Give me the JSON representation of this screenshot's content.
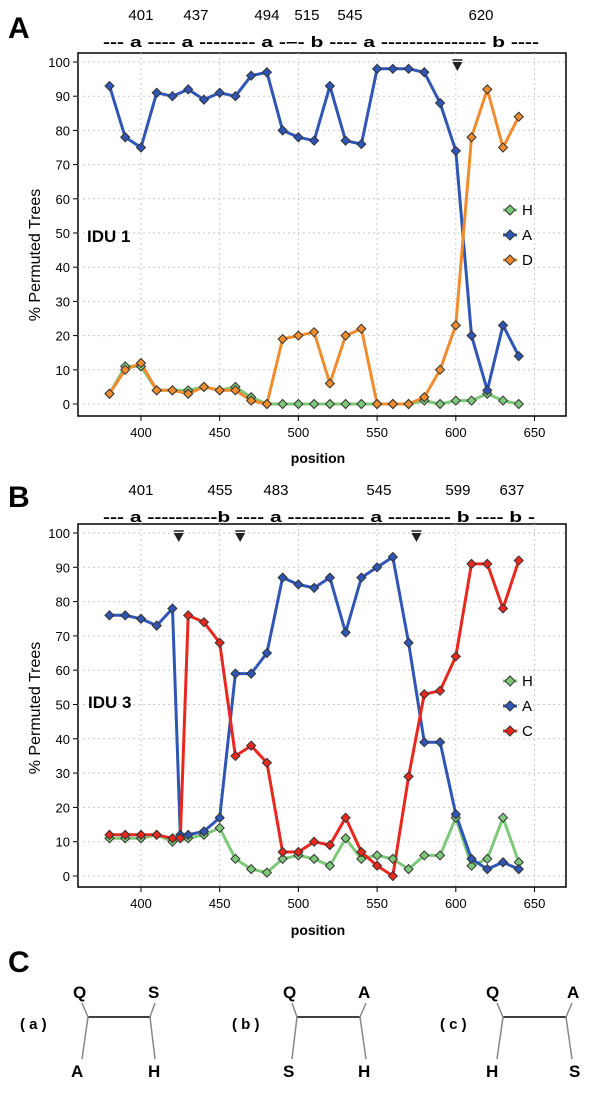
{
  "colors": {
    "H": "#7ec87a",
    "A": "#2f55b5",
    "D": "#f08c2e",
    "C": "#e8281e",
    "marker": "#333333"
  },
  "chart_data": [
    {
      "type": "line",
      "panel": "A",
      "label": "IDU 1",
      "positions": [
        "401",
        "437",
        "494",
        "515",
        "545",
        "620"
      ],
      "sequence": "--- a ---- a -------- a -–- b ---- a --------------- b ----",
      "xlabel": "position",
      "ylabel": "% Permuted Trees",
      "xlim": [
        360,
        670
      ],
      "ylim": [
        0,
        100
      ],
      "xticks": [
        400,
        450,
        500,
        550,
        600,
        650
      ],
      "yticks": [
        0,
        10,
        20,
        30,
        40,
        50,
        60,
        70,
        80,
        90,
        100
      ],
      "arrows": [
        601
      ],
      "legend": [
        "H",
        "A",
        "D"
      ],
      "series": [
        {
          "name": "H",
          "x": [
            380,
            390,
            400,
            410,
            420,
            430,
            440,
            450,
            460,
            470,
            480,
            490,
            500,
            510,
            520,
            530,
            540,
            550,
            560,
            570,
            580,
            590,
            600,
            610,
            620,
            630,
            640
          ],
          "y": [
            3,
            11,
            11,
            4,
            4,
            4,
            5,
            4,
            5,
            2,
            0,
            0,
            0,
            0,
            0,
            0,
            0,
            0,
            0,
            0,
            1,
            0,
            1,
            1,
            3,
            1,
            0
          ]
        },
        {
          "name": "A",
          "x": [
            380,
            390,
            400,
            410,
            420,
            430,
            440,
            450,
            460,
            470,
            480,
            490,
            500,
            510,
            520,
            530,
            540,
            550,
            560,
            570,
            580,
            590,
            600,
            610,
            620,
            630,
            640
          ],
          "y": [
            93,
            78,
            75,
            91,
            90,
            92,
            89,
            91,
            90,
            96,
            97,
            80,
            78,
            77,
            93,
            77,
            76,
            98,
            98,
            98,
            97,
            88,
            74,
            20,
            4,
            23,
            14
          ]
        },
        {
          "name": "D",
          "x": [
            380,
            390,
            400,
            410,
            420,
            430,
            440,
            450,
            460,
            470,
            480,
            490,
            500,
            510,
            520,
            530,
            540,
            550,
            560,
            570,
            580,
            590,
            600,
            610,
            620,
            630,
            640
          ],
          "y": [
            3,
            10,
            12,
            4,
            4,
            3,
            5,
            4,
            4,
            1,
            0,
            19,
            20,
            21,
            6,
            20,
            22,
            0,
            0,
            0,
            2,
            10,
            23,
            78,
            92,
            75,
            84
          ]
        }
      ]
    },
    {
      "type": "line",
      "panel": "B",
      "label": "IDU 3",
      "positions": [
        "401",
        "455",
        "483",
        "545",
        "599",
        "637"
      ],
      "sequence": "--- a ----------b ---- a ----------- a --------- b ---- b -",
      "xlabel": "position",
      "ylabel": "% Permuted Trees",
      "xlim": [
        360,
        670
      ],
      "ylim": [
        0,
        100
      ],
      "xticks": [
        400,
        450,
        500,
        550,
        600,
        650
      ],
      "yticks": [
        0,
        10,
        20,
        30,
        40,
        50,
        60,
        70,
        80,
        90,
        100
      ],
      "arrows": [
        424,
        463,
        575
      ],
      "legend": [
        "H",
        "A",
        "C"
      ],
      "series": [
        {
          "name": "H",
          "x": [
            380,
            390,
            400,
            410,
            420,
            430,
            440,
            450,
            460,
            470,
            480,
            490,
            500,
            510,
            520,
            530,
            540,
            550,
            560,
            570,
            580,
            590,
            600,
            610,
            620,
            630,
            640
          ],
          "y": [
            11,
            11,
            11,
            12,
            10,
            11,
            12,
            14,
            5,
            2,
            1,
            5,
            6,
            5,
            3,
            11,
            5,
            6,
            5,
            2,
            6,
            6,
            17,
            3,
            5,
            17,
            4
          ]
        },
        {
          "name": "A",
          "x": [
            380,
            390,
            400,
            410,
            420,
            425,
            430,
            440,
            450,
            460,
            470,
            480,
            490,
            500,
            510,
            520,
            530,
            540,
            550,
            560,
            570,
            580,
            590,
            600,
            610,
            620,
            630,
            640
          ],
          "y": [
            76,
            76,
            75,
            73,
            78,
            12,
            12,
            13,
            17,
            59,
            59,
            65,
            87,
            85,
            84,
            87,
            71,
            87,
            90,
            93,
            68,
            39,
            39,
            18,
            5,
            2,
            4,
            2
          ]
        },
        {
          "name": "C",
          "x": [
            380,
            390,
            400,
            410,
            420,
            425,
            430,
            440,
            450,
            460,
            470,
            480,
            490,
            500,
            510,
            520,
            530,
            540,
            550,
            560,
            570,
            580,
            590,
            600,
            610,
            620,
            630,
            640
          ],
          "y": [
            12,
            12,
            12,
            12,
            11,
            11,
            76,
            74,
            68,
            35,
            38,
            33,
            7,
            7,
            10,
            9,
            17,
            7,
            3,
            0,
            29,
            53,
            54,
            64,
            91,
            91,
            78,
            92
          ]
        }
      ]
    }
  ],
  "panel_c": {
    "letter": "C",
    "trees": [
      {
        "tag": "( a )",
        "tl": "Q",
        "tr": "S",
        "bl": "A",
        "br": "H"
      },
      {
        "tag": "( b )",
        "tl": "Q",
        "tr": "A",
        "bl": "S",
        "br": "H"
      },
      {
        "tag": "( c )",
        "tl": "Q",
        "tr": "A",
        "bl": "H",
        "br": "S"
      }
    ]
  }
}
